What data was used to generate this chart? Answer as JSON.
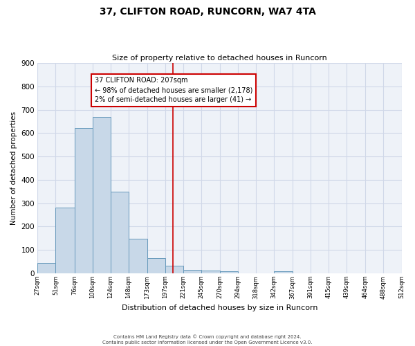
{
  "title": "37, CLIFTON ROAD, RUNCORN, WA7 4TA",
  "subtitle": "Size of property relative to detached houses in Runcorn",
  "xlabel": "Distribution of detached houses by size in Runcorn",
  "ylabel": "Number of detached properties",
  "bar_left_edges": [
    27,
    51,
    76,
    100,
    124,
    148,
    173,
    197,
    221,
    245,
    270,
    294,
    318,
    342,
    367,
    391,
    415,
    439,
    464,
    488
  ],
  "bar_widths": [
    24,
    25,
    24,
    24,
    24,
    25,
    24,
    24,
    24,
    25,
    24,
    24,
    24,
    25,
    24,
    24,
    24,
    25,
    24,
    24
  ],
  "bar_heights": [
    45,
    280,
    622,
    670,
    348,
    148,
    65,
    32,
    15,
    13,
    10,
    0,
    0,
    8,
    0,
    0,
    0,
    0,
    0,
    0
  ],
  "bar_color": "#c8d8e8",
  "bar_edge_color": "#6699bb",
  "xtick_labels": [
    "27sqm",
    "51sqm",
    "76sqm",
    "100sqm",
    "124sqm",
    "148sqm",
    "173sqm",
    "197sqm",
    "221sqm",
    "245sqm",
    "270sqm",
    "294sqm",
    "318sqm",
    "342sqm",
    "367sqm",
    "391sqm",
    "415sqm",
    "439sqm",
    "464sqm",
    "488sqm",
    "512sqm"
  ],
  "xtick_positions": [
    27,
    51,
    76,
    100,
    124,
    148,
    173,
    197,
    221,
    245,
    270,
    294,
    318,
    342,
    367,
    391,
    415,
    439,
    464,
    488,
    512
  ],
  "ylim": [
    0,
    900
  ],
  "xlim": [
    27,
    512
  ],
  "yticks": [
    0,
    100,
    200,
    300,
    400,
    500,
    600,
    700,
    800,
    900
  ],
  "vline_x": 207,
  "vline_color": "#cc0000",
  "annotation_title": "37 CLIFTON ROAD: 207sqm",
  "annotation_line1": "← 98% of detached houses are smaller (2,178)",
  "annotation_line2": "2% of semi-detached houses are larger (41) →",
  "annotation_box_color": "#cc0000",
  "grid_color": "#d0d8e8",
  "bg_color": "#eef2f8",
  "footer1": "Contains HM Land Registry data © Crown copyright and database right 2024.",
  "footer2": "Contains public sector information licensed under the Open Government Licence v3.0."
}
